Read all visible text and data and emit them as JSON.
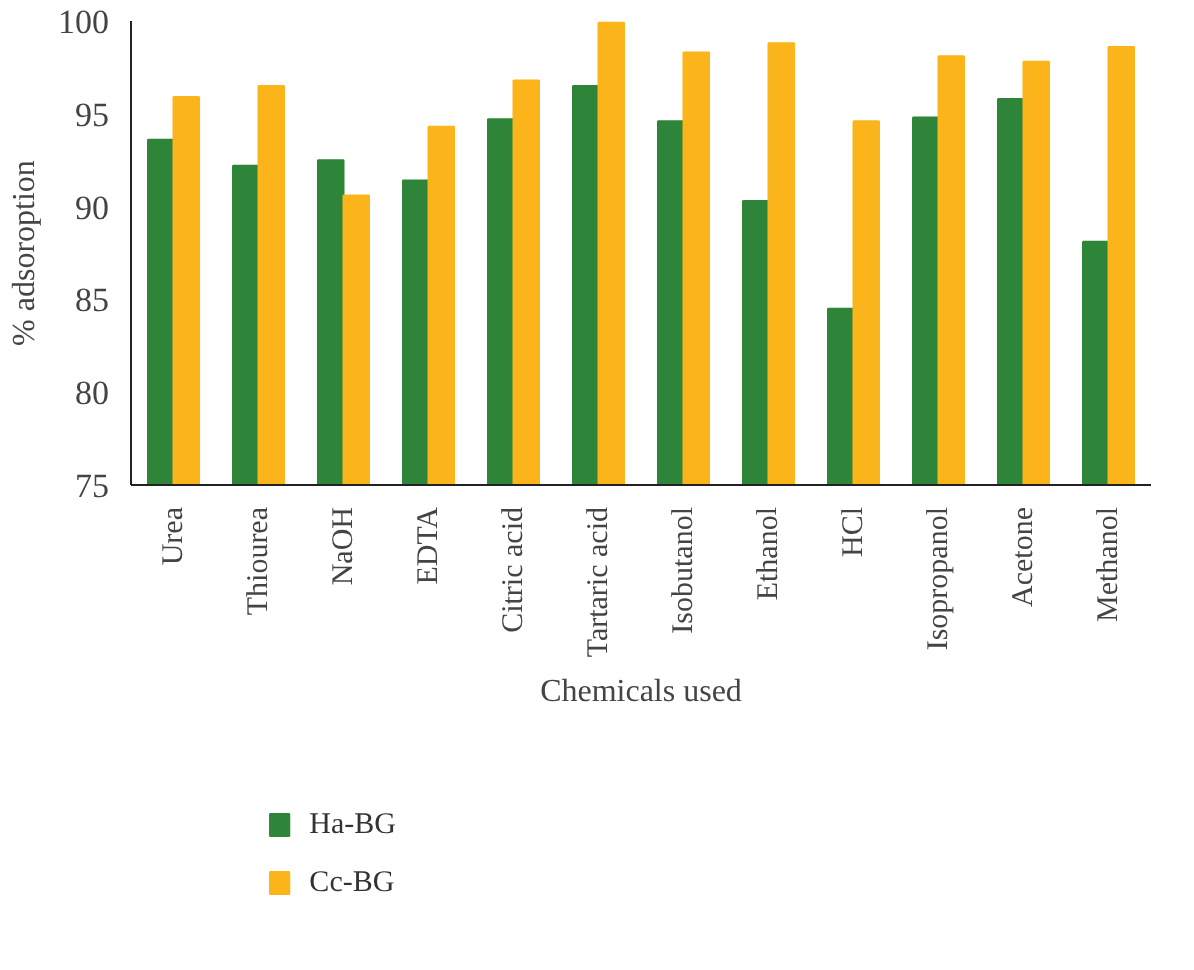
{
  "chart_data": {
    "type": "bar",
    "xlabel": "Chemicals used",
    "ylabel": "% adsoroption",
    "categories": [
      "Urea",
      "Thiourea",
      "NaOH",
      "EDTA",
      "Citric acid",
      "Tartaric acid",
      "Isobutanol",
      "Ethanol",
      "HCl",
      "Isopropanol",
      "Acetone",
      "Methanol"
    ],
    "series": [
      {
        "name": "Ha-BG",
        "color": "#2e8539",
        "values": [
          93.6,
          92.2,
          92.5,
          91.4,
          94.7,
          96.5,
          94.6,
          90.3,
          84.5,
          94.8,
          95.8,
          88.1
        ]
      },
      {
        "name": "Cc-BG",
        "color": "#fbb41a",
        "values": [
          95.9,
          96.5,
          90.6,
          94.3,
          96.8,
          99.9,
          98.3,
          98.8,
          94.6,
          98.1,
          97.8,
          98.6
        ]
      }
    ],
    "ylim": [
      75,
      100
    ],
    "yticks": [
      75,
      80,
      85,
      90,
      95,
      100
    ],
    "grid": false,
    "legend": "bottom left"
  }
}
